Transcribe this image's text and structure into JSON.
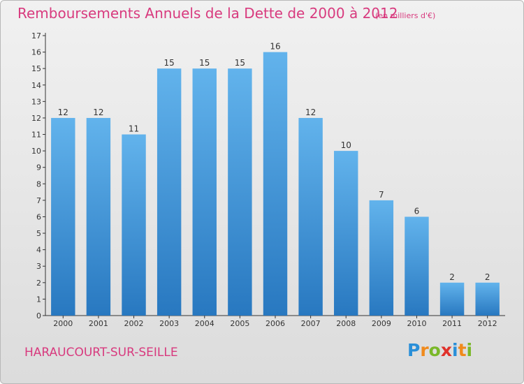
{
  "header": {
    "title": "Remboursements Annuels de la Dette de 2000 à 2012",
    "subtitle": "(en milliers d'€)"
  },
  "footer": {
    "city": "HARAUCOURT-SUR-SEILLE",
    "logo_letters": [
      "P",
      "r",
      "o",
      "x",
      "i",
      "t",
      "i"
    ],
    "logo_colors": [
      "#2a8fd8",
      "#f08a1c",
      "#7ab829",
      "#e0312b",
      "#2a8fd8",
      "#f08a1c",
      "#7ab829"
    ]
  },
  "colors": {
    "bar_top": "#62b3ec",
    "bar_bottom": "#2878c0",
    "axis": "#333333"
  },
  "chart_data": {
    "type": "bar",
    "title": "Remboursements Annuels de la Dette de 2000 à 2012",
    "subtitle": "(en milliers d'€)",
    "categories": [
      "2000",
      "2001",
      "2002",
      "2003",
      "2004",
      "2005",
      "2006",
      "2007",
      "2008",
      "2009",
      "2010",
      "2011",
      "2012"
    ],
    "values": [
      12,
      12,
      11,
      15,
      15,
      15,
      16,
      12,
      10,
      7,
      6,
      2,
      2
    ],
    "ylim": [
      0,
      17
    ],
    "yticks": [
      0,
      1,
      2,
      3,
      4,
      5,
      6,
      7,
      8,
      9,
      10,
      11,
      12,
      13,
      14,
      15,
      16,
      17
    ],
    "grid": false,
    "legend": "none"
  }
}
